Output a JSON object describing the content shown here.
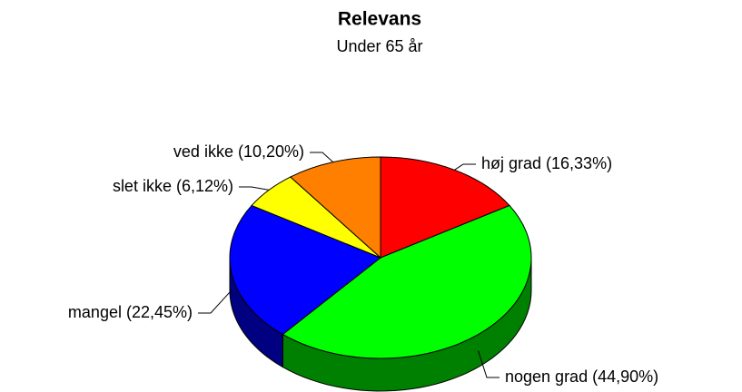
{
  "chart_data": {
    "type": "pie3d",
    "title": "Relevans",
    "subtitle": "Under 65 år",
    "values": [
      16.33,
      44.9,
      22.45,
      6.12,
      10.2
    ],
    "value_labels": [
      "høj grad (16,33%)",
      "nogen grad (44,90%)",
      "mangel (22,45%)",
      "slet ikke (6,12%)",
      "ved ikke (10,20%)"
    ],
    "colors": [
      "#ff0000",
      "#00ff00",
      "#0000ff",
      "#ffff00",
      "#ff8000"
    ]
  }
}
